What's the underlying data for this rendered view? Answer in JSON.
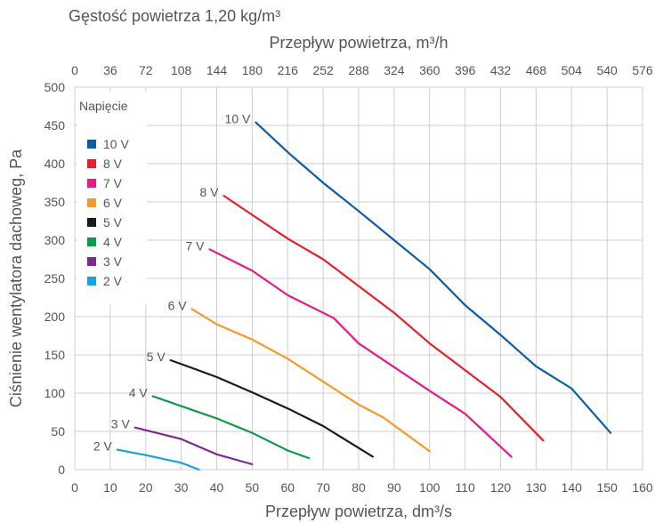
{
  "density_label": "Gęstość powietrza 1,20 kg/m³",
  "chart_data": {
    "type": "line",
    "xlabel": "Przepływ powietrza, dm³/s",
    "x2label": "Przepływ powietrza, m³/h",
    "ylabel": "Ciśnienie wentylatora dachoweg, Pa",
    "xlim": [
      0,
      160
    ],
    "ylim": [
      0,
      500
    ],
    "xticks": [
      0,
      10,
      20,
      30,
      40,
      50,
      60,
      70,
      80,
      90,
      100,
      110,
      120,
      130,
      140,
      150,
      160
    ],
    "x2ticks": [
      0,
      36,
      72,
      108,
      144,
      180,
      216,
      252,
      288,
      324,
      360,
      396,
      432,
      468,
      504,
      540,
      576
    ],
    "yticks": [
      0,
      50,
      100,
      150,
      200,
      250,
      300,
      350,
      400,
      450,
      500
    ],
    "grid": true,
    "legend_title": "Napięcie",
    "legend_position": "top-left",
    "series": [
      {
        "name": "10 V",
        "color": "#0a5ca8",
        "x": [
          51,
          60,
          70,
          80,
          90,
          100,
          110,
          120,
          130,
          140,
          151
        ],
        "y": [
          454,
          415,
          375,
          338,
          300,
          262,
          215,
          176,
          135,
          106,
          48
        ]
      },
      {
        "name": "8 V",
        "color": "#e3202b",
        "x": [
          42,
          50,
          60,
          70,
          80,
          90,
          100,
          110,
          120,
          132
        ],
        "y": [
          358,
          333,
          302,
          275,
          240,
          205,
          165,
          130,
          95,
          38
        ]
      },
      {
        "name": "7 V",
        "color": "#e5198a",
        "x": [
          38,
          50,
          60,
          73,
          80,
          90,
          100,
          110,
          123
        ],
        "y": [
          288,
          260,
          228,
          198,
          165,
          134,
          103,
          73,
          17
        ]
      },
      {
        "name": "6 V",
        "color": "#f39a2c",
        "x": [
          33,
          40,
          50,
          60,
          70,
          80,
          87,
          100
        ],
        "y": [
          210,
          190,
          170,
          145,
          115,
          85,
          68,
          24
        ]
      },
      {
        "name": "5 V",
        "color": "#1a1a1a",
        "x": [
          27,
          33,
          40,
          50,
          60,
          70,
          84
        ],
        "y": [
          143,
          133,
          121,
          101,
          80,
          57,
          17
        ]
      },
      {
        "name": "4 V",
        "color": "#109a4a",
        "x": [
          22,
          30,
          40,
          50,
          60,
          66
        ],
        "y": [
          96,
          83,
          67,
          48,
          25,
          15
        ]
      },
      {
        "name": "3 V",
        "color": "#7d2a8f",
        "x": [
          17,
          30,
          40,
          50
        ],
        "y": [
          55,
          40,
          20,
          7
        ]
      },
      {
        "name": "2 V",
        "color": "#16a4e0",
        "x": [
          12,
          20,
          30,
          35
        ],
        "y": [
          26,
          19,
          9,
          0
        ]
      }
    ]
  }
}
